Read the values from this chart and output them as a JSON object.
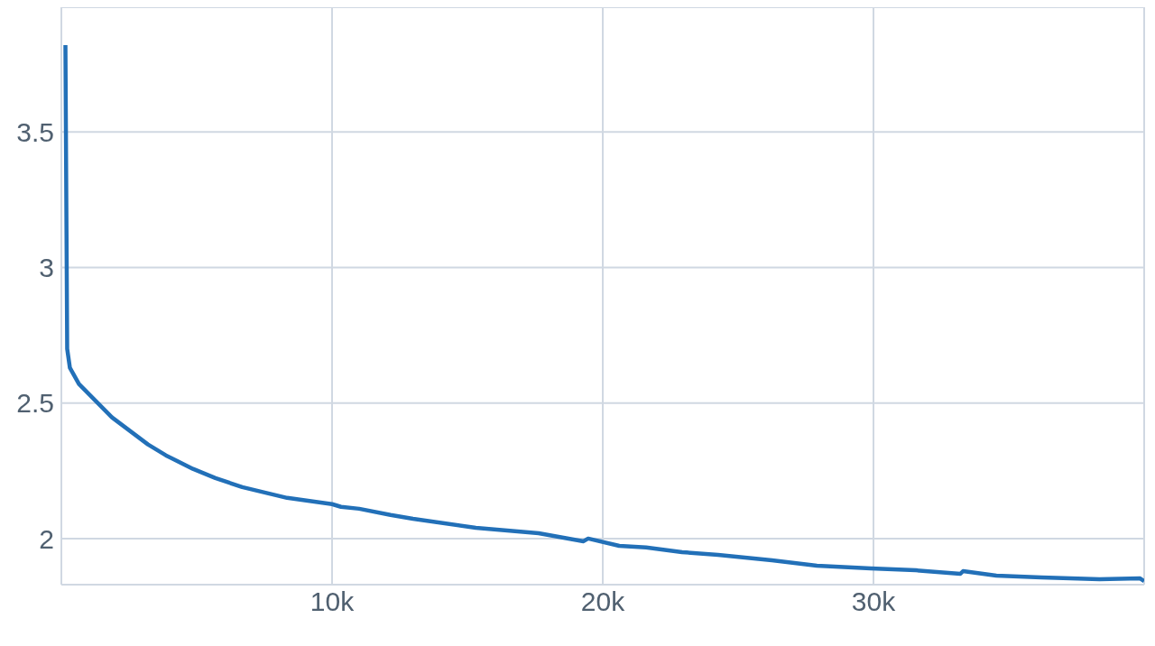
{
  "chart_data": {
    "type": "line",
    "x": [
      150,
      215,
      315,
      650,
      1870,
      3200,
      3860,
      4860,
      5690,
      6680,
      8340,
      10000,
      10330,
      11000,
      12160,
      12990,
      15310,
      17630,
      19290,
      19460,
      20610,
      21600,
      22930,
      24260,
      26250,
      27910,
      29900,
      31560,
      33210,
      33310,
      34540,
      36200,
      38350,
      39850,
      40000
    ],
    "series": [
      {
        "color": "#2270b8",
        "values": [
          3.82,
          2.7,
          2.63,
          2.57,
          2.447,
          2.347,
          2.307,
          2.257,
          2.223,
          2.19,
          2.15,
          2.127,
          2.117,
          2.11,
          2.087,
          2.073,
          2.04,
          2.02,
          1.99,
          2.0,
          1.973,
          1.967,
          1.95,
          1.94,
          1.92,
          1.9,
          1.89,
          1.883,
          1.87,
          1.88,
          1.863,
          1.857,
          1.85,
          1.853,
          1.843
        ]
      }
    ],
    "xlim": [
      0,
      40000
    ],
    "xticks": [
      {
        "value": 10000,
        "label": "10k"
      },
      {
        "value": 20000,
        "label": "20k"
      },
      {
        "value": 30000,
        "label": "30k"
      }
    ],
    "ylim": [
      1.83,
      3.96
    ],
    "yticks": [
      2,
      2.5,
      3,
      3.5
    ],
    "grid": true,
    "legend": false,
    "marker": "none",
    "line_style": "solid"
  }
}
